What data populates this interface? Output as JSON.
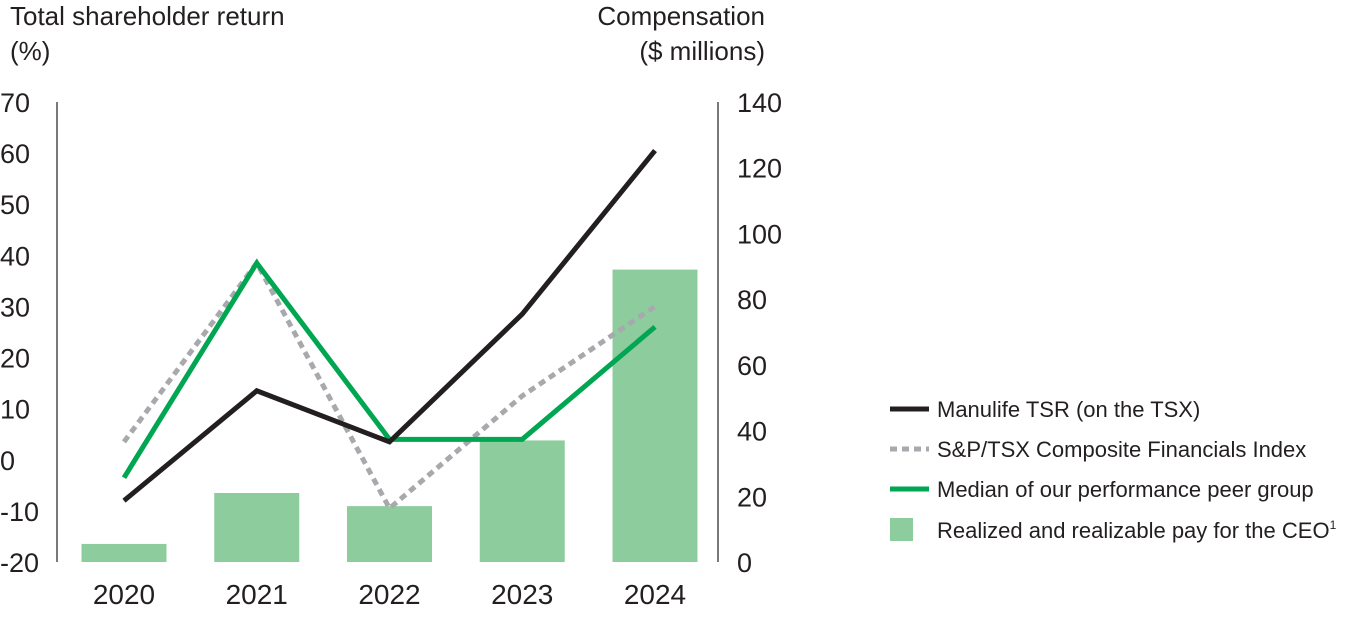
{
  "chart_data": {
    "type": "bar+line",
    "left_axis": {
      "title_line1": "Total shareholder return",
      "title_line2": "(%)",
      "range": [
        -20,
        70
      ],
      "ticks": [
        "70",
        "60",
        "50",
        "40",
        "30",
        "20",
        "10",
        "0",
        "-10",
        "-20"
      ],
      "tick_values": [
        70,
        60,
        50,
        40,
        30,
        20,
        10,
        0,
        -10,
        -20
      ]
    },
    "right_axis": {
      "title_line1": "Compensation",
      "title_line2": "($ millions)",
      "range": [
        0,
        140
      ],
      "ticks": [
        "140",
        "120",
        "100",
        "80",
        "60",
        "40",
        "20",
        "0"
      ],
      "tick_values": [
        140,
        120,
        100,
        80,
        60,
        40,
        20,
        0
      ]
    },
    "categories": [
      "2020",
      "2021",
      "2022",
      "2023",
      "2024"
    ],
    "bars": {
      "name": "Realized and realizable pay for the CEO",
      "superscript": "1",
      "axis": "right",
      "color": "#8dcc9c",
      "values": [
        5.5,
        21,
        17,
        37,
        89
      ]
    },
    "series": [
      {
        "name": "Manulife TSR (on the TSX)",
        "axis": "left",
        "style": "solid",
        "color": "#231f20",
        "values": [
          -8,
          13.5,
          3.5,
          28.5,
          60.5
        ]
      },
      {
        "name": "S&P/TSX Composite Financials Index",
        "axis": "left",
        "style": "dotted",
        "color": "#a7a9ac",
        "values": [
          3.5,
          38.5,
          -9.5,
          12.5,
          30
        ]
      },
      {
        "name": "Median of our performance peer group",
        "axis": "left",
        "style": "solid",
        "color": "#00a651",
        "values": [
          -3.5,
          38.5,
          4,
          4,
          26
        ]
      }
    ],
    "legend_position": "right"
  }
}
